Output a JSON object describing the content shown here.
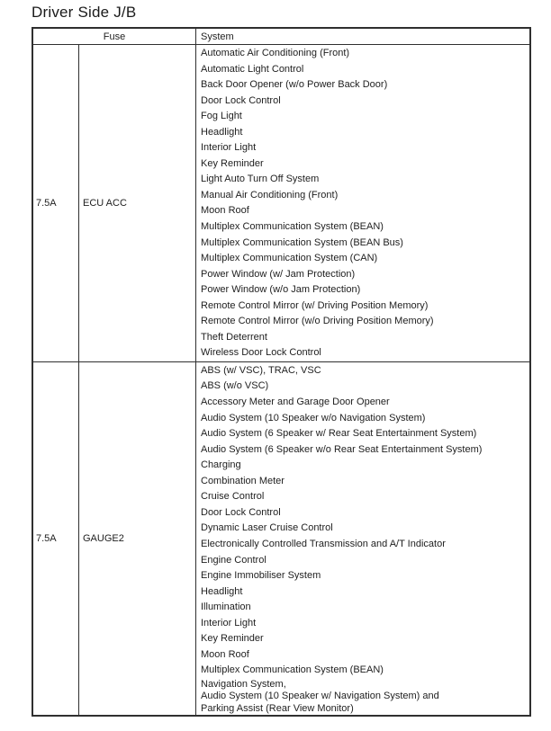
{
  "title": "Driver Side J/B",
  "table": {
    "headers": {
      "fuse": "Fuse",
      "system": "System"
    },
    "rows": [
      {
        "amp": "7.5A",
        "name": "ECU ACC",
        "systems": [
          "Automatic Air Conditioning (Front)",
          "Automatic Light Control",
          "Back Door Opener (w/o Power Back Door)",
          "Door Lock Control",
          "Fog Light",
          "Headlight",
          "Interior Light",
          "Key Reminder",
          "Light Auto Turn Off System",
          "Manual Air Conditioning (Front)",
          "Moon Roof",
          "Multiplex Communication System (BEAN)",
          "Multiplex Communication System (BEAN Bus)",
          "Multiplex Communication System (CAN)",
          "Power Window (w/ Jam Protection)",
          "Power Window (w/o Jam Protection)",
          "Remote Control Mirror (w/ Driving Position Memory)",
          "Remote Control Mirror (w/o Driving Position Memory)",
          "Theft Deterrent",
          "Wireless Door Lock Control"
        ]
      },
      {
        "amp": "7.5A",
        "name": "GAUGE2",
        "systems": [
          "ABS (w/ VSC), TRAC, VSC",
          "ABS (w/o VSC)",
          "Accessory Meter and Garage Door Opener",
          "Audio System (10 Speaker w/o Navigation System)",
          "Audio System (6 Speaker w/ Rear Seat Entertainment System)",
          "Audio System (6 Speaker w/o Rear Seat Entertainment System)",
          "Charging",
          "Combination Meter",
          "Cruise Control",
          "Door Lock Control",
          "Dynamic Laser Cruise Control",
          "Electronically Controlled Transmission and A/T Indicator",
          "Engine Control",
          "Engine Immobiliser System",
          "Headlight",
          "Illumination",
          "Interior Light",
          "Key Reminder",
          "Moon Roof",
          "Multiplex Communication System (BEAN)",
          "Navigation System,\nAudio System (10 Speaker w/ Navigation System) and\nParking Assist (Rear View Monitor)"
        ]
      }
    ]
  },
  "colors": {
    "border": "#2f2f2f",
    "text": "#1e1e1e",
    "background": "#ffffff"
  }
}
